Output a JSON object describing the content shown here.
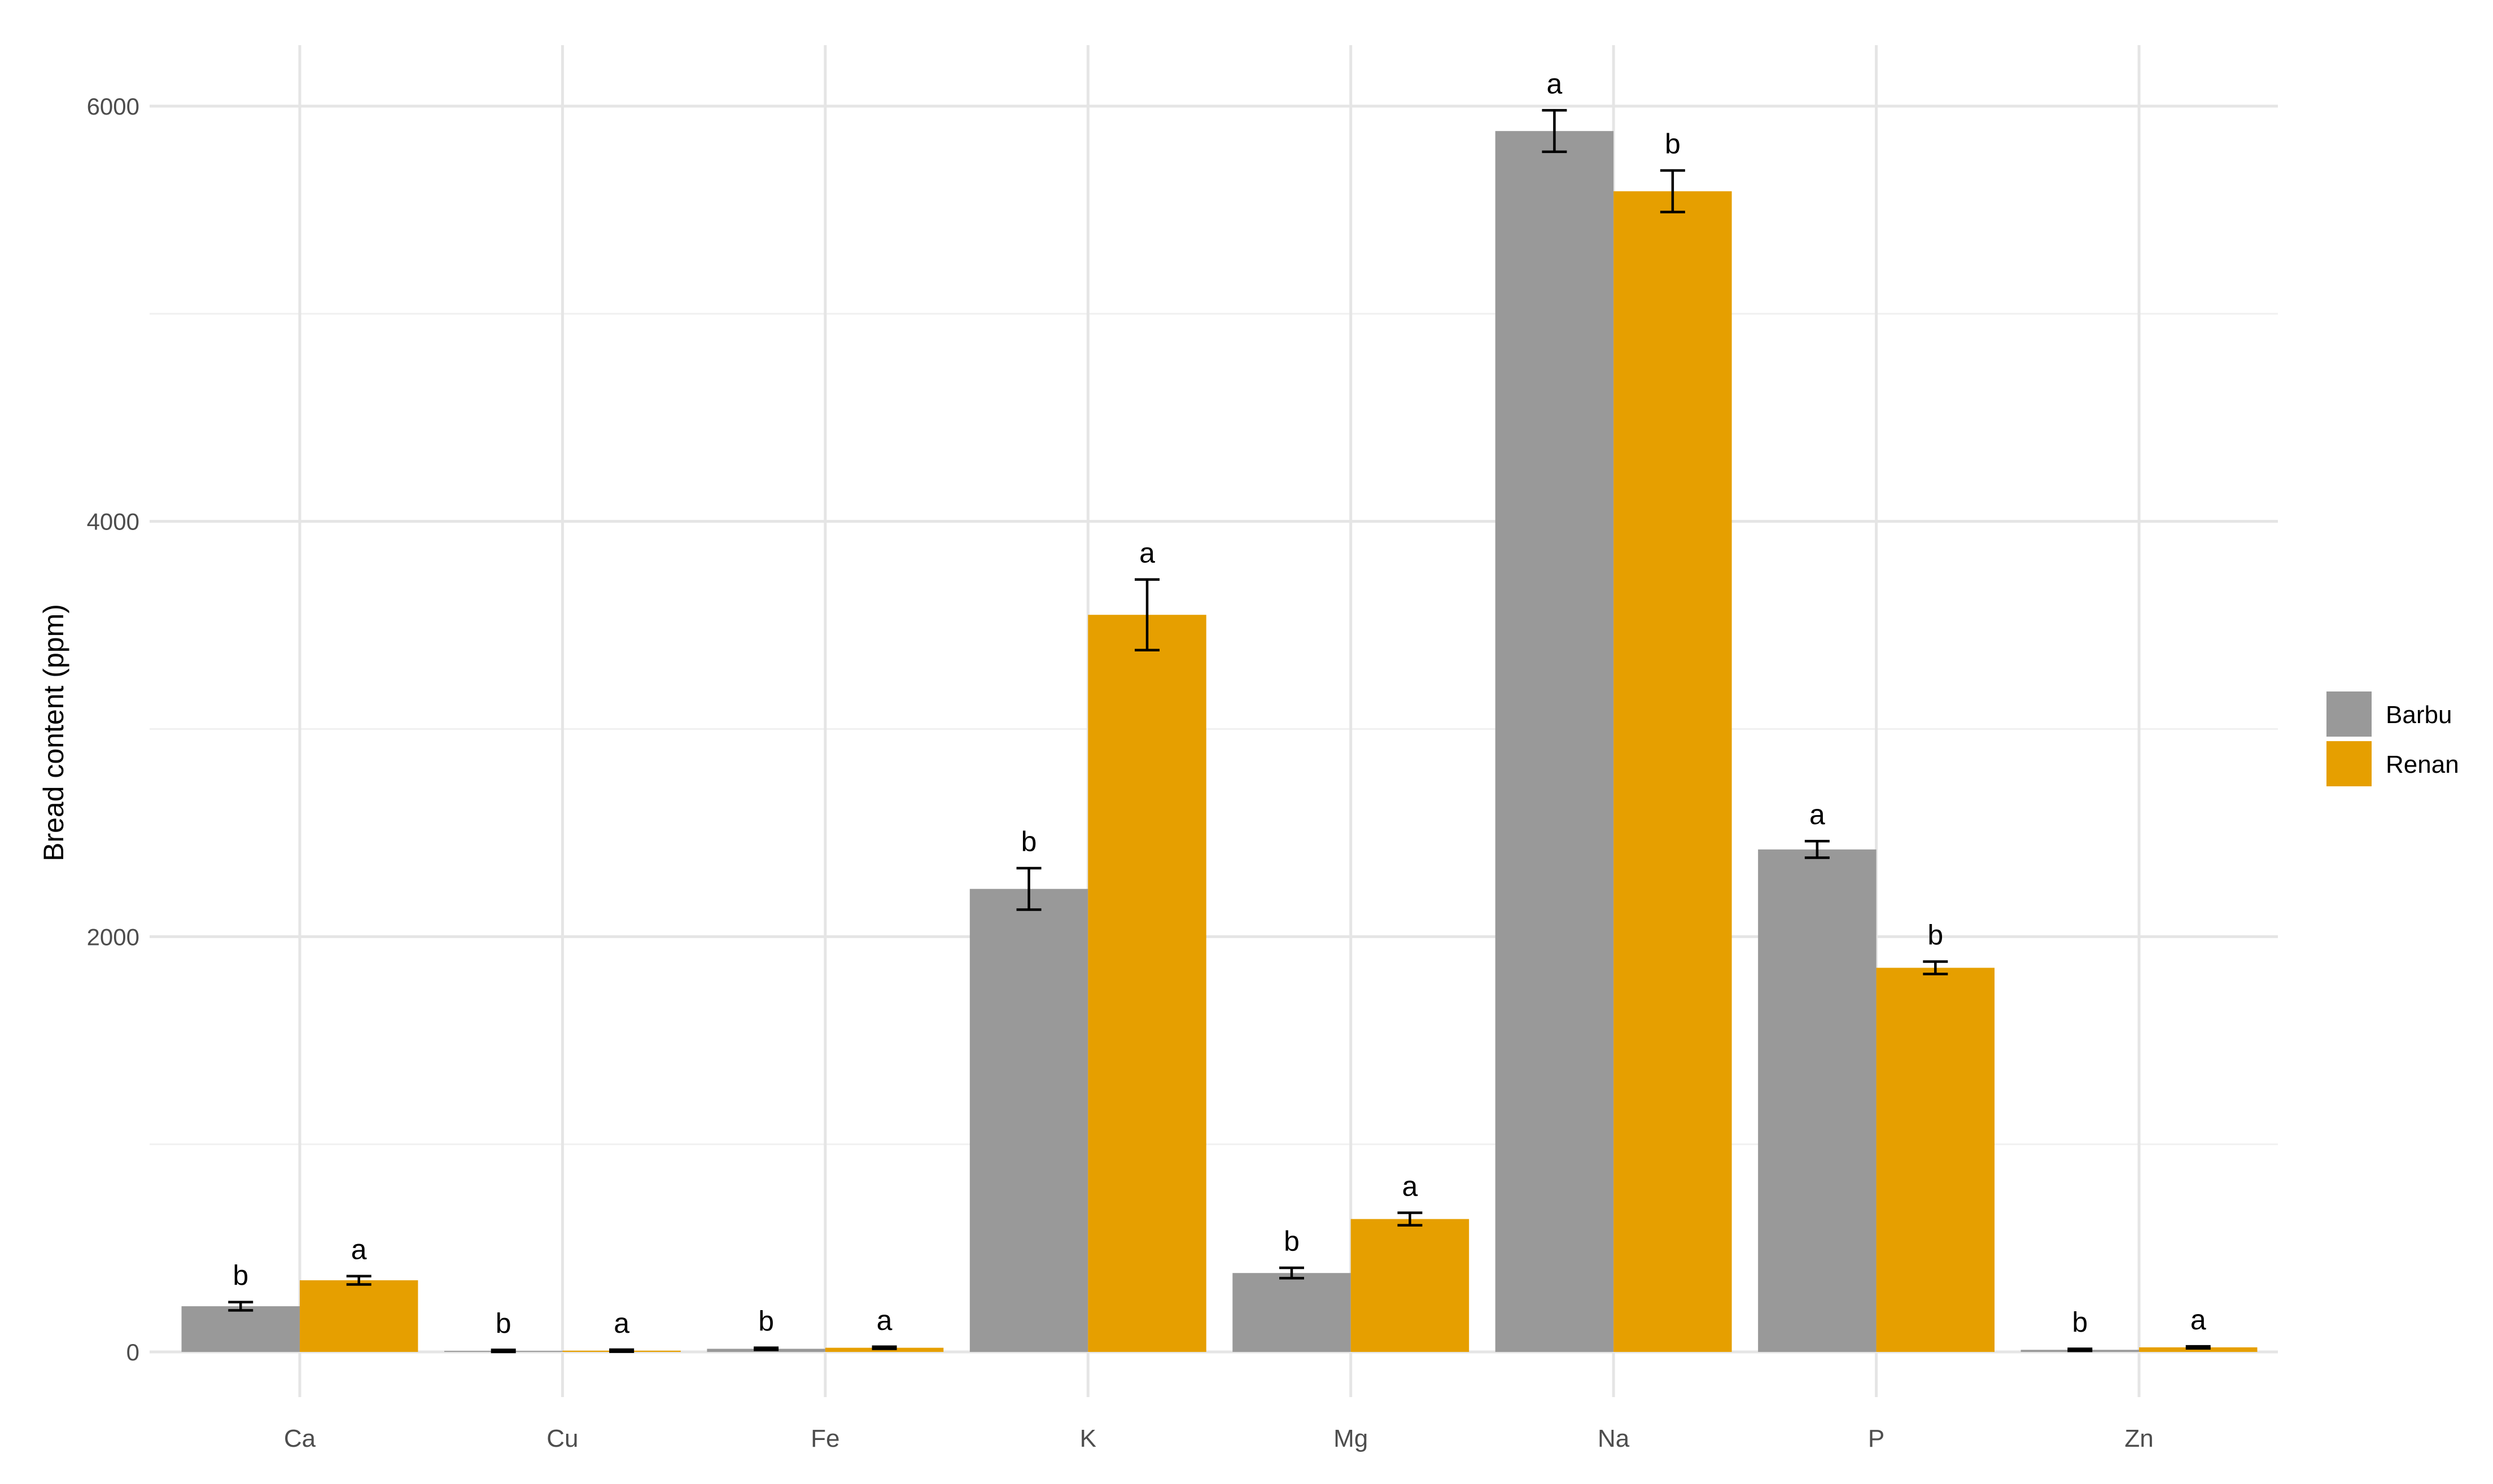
{
  "chart_data": {
    "type": "bar",
    "title": "",
    "xlabel": "",
    "ylabel": "Bread content (ppm)",
    "categories": [
      "Ca",
      "Cu",
      "Fe",
      "K",
      "Mg",
      "Na",
      "P",
      "Zn"
    ],
    "ylim": [
      -200,
      6300
    ],
    "yticks": [
      0,
      2000,
      4000,
      6000
    ],
    "grid": true,
    "legend_position": "right",
    "series": [
      {
        "name": "Barbu",
        "color": "#999999",
        "values": [
          220,
          5,
          15,
          2230,
          380,
          5880,
          2420,
          10
        ],
        "errors": [
          20,
          5,
          5,
          100,
          25,
          100,
          40,
          5
        ],
        "letters": [
          "b",
          "b",
          "b",
          "b",
          "b",
          "a",
          "a",
          "b"
        ]
      },
      {
        "name": "Renan",
        "color": "#E69F00",
        "values": [
          345,
          6,
          20,
          3550,
          640,
          5590,
          1850,
          22
        ],
        "errors": [
          20,
          5,
          5,
          170,
          30,
          100,
          30,
          5
        ],
        "letters": [
          "a",
          "a",
          "a",
          "a",
          "a",
          "b",
          "b",
          "a"
        ]
      }
    ]
  }
}
